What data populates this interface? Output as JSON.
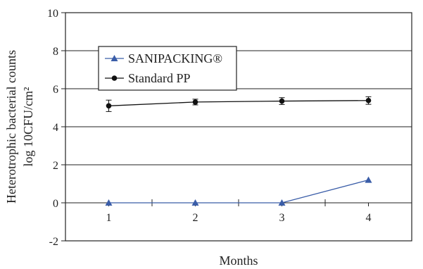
{
  "chart_data": {
    "type": "line",
    "xlabel": "Months",
    "ylabel_line1": "Heterotrophic bacterial counts",
    "ylabel_line2": "log 10CFU/cm²",
    "categories": [
      "1",
      "2",
      "3",
      "4"
    ],
    "ylim": [
      -2,
      10
    ],
    "yticks": [
      "-2",
      "0",
      "2",
      "4",
      "6",
      "8",
      "10"
    ],
    "grid": true,
    "legend_position": "upper-left",
    "series": [
      {
        "name": "SANIPACKING®",
        "color": "#3a5da8",
        "marker": "triangle",
        "values": [
          0,
          0,
          0,
          1.2
        ]
      },
      {
        "name": "Standard PP",
        "color": "#111111",
        "marker": "circle",
        "values": [
          5.1,
          5.3,
          5.35,
          5.38
        ],
        "error": [
          0.3,
          0.15,
          0.18,
          0.2
        ]
      }
    ]
  }
}
